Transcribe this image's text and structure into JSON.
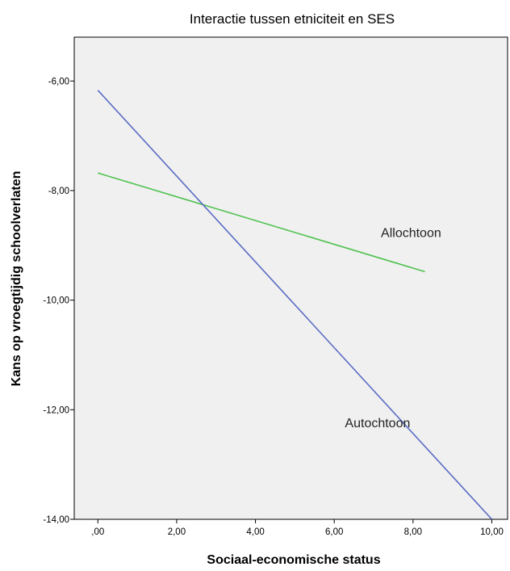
{
  "chart_data": {
    "type": "line",
    "title": "Interactie tussen etniciteit en SES",
    "xlabel": "Sociaal-economische status",
    "ylabel": "Kans op vroegtijdig schoolverlaten",
    "xlim": [
      -0.6,
      10.4
    ],
    "ylim": [
      -14.0,
      -5.2
    ],
    "x_ticks": [
      0,
      2,
      4,
      6,
      8,
      10
    ],
    "x_tick_labels": [
      ",00",
      "2,00",
      "4,00",
      "6,00",
      "8,00",
      "10,00"
    ],
    "y_ticks": [
      -6,
      -8,
      -10,
      -12,
      -14
    ],
    "y_tick_labels": [
      "-6,00",
      "-8,00",
      "-10,00",
      "-12,00",
      "-14,00"
    ],
    "grid": false,
    "background": "#f0f0f0",
    "series": [
      {
        "name": "Allochtoon",
        "color": "#4fc24f",
        "x": [
          0.0,
          8.3
        ],
        "y": [
          -7.68,
          -9.48
        ]
      },
      {
        "name": "Autochtoon",
        "color": "#5a6cc4",
        "x": [
          0.0,
          10.0
        ],
        "y": [
          -6.17,
          -14.0
        ]
      }
    ]
  }
}
